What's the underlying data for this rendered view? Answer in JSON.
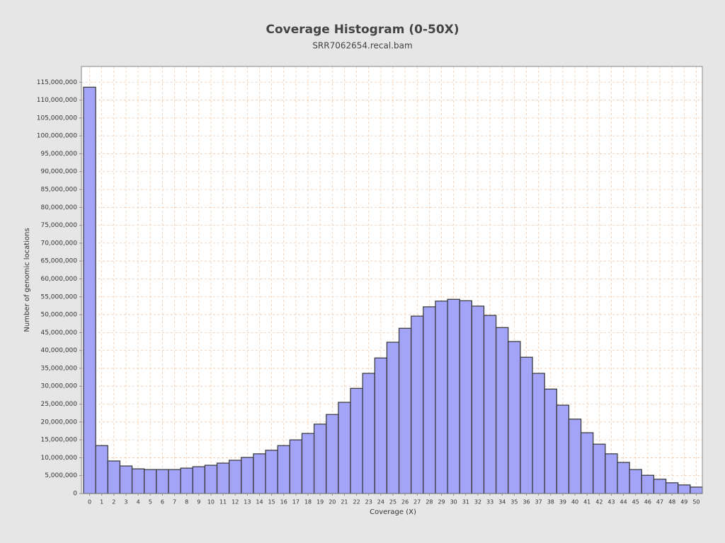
{
  "chart_data": {
    "type": "bar",
    "title": "Coverage Histogram (0-50X)",
    "subtitle": "SRR7062654.recal.bam",
    "x_label": "Coverage (X)",
    "y_label": "Number of genomic locations",
    "categories": [
      0,
      1,
      2,
      3,
      4,
      5,
      6,
      7,
      8,
      9,
      10,
      11,
      12,
      13,
      14,
      15,
      16,
      17,
      18,
      19,
      20,
      21,
      22,
      23,
      24,
      25,
      26,
      27,
      28,
      29,
      30,
      31,
      32,
      33,
      34,
      35,
      36,
      37,
      38,
      39,
      40,
      41,
      42,
      43,
      44,
      45,
      46,
      47,
      48,
      49,
      50
    ],
    "values": [
      113600000,
      13400000,
      9100000,
      7700000,
      6900000,
      6700000,
      6700000,
      6700000,
      7100000,
      7500000,
      7900000,
      8500000,
      9300000,
      10100000,
      11100000,
      12100000,
      13400000,
      15000000,
      16800000,
      19400000,
      22100000,
      25500000,
      29400000,
      33600000,
      37900000,
      42300000,
      46200000,
      49600000,
      52200000,
      53800000,
      54300000,
      53900000,
      52400000,
      49800000,
      46400000,
      42500000,
      38100000,
      33600000,
      29200000,
      24700000,
      20800000,
      17000000,
      13800000,
      11100000,
      8700000,
      6700000,
      5100000,
      4000000,
      3000000,
      2400000,
      1800000
    ],
    "color": "#a3a3f8",
    "ylim": [
      0,
      119400000
    ],
    "yticks": [
      0,
      {
        "value": 5000000,
        "label": "5,000,000"
      },
      {
        "value": 10000000,
        "label": "10,000,000"
      },
      {
        "value": 15000000,
        "label": "15,000,000"
      },
      {
        "value": 20000000,
        "label": "20,000,000"
      },
      {
        "value": 25000000,
        "label": "25,000,000"
      },
      {
        "value": 30000000,
        "label": "30,000,000"
      },
      {
        "value": 35000000,
        "label": "35,000,000"
      },
      {
        "value": 40000000,
        "label": "40,000,000"
      },
      {
        "value": 45000000,
        "label": "45,000,000"
      },
      {
        "value": 50000000,
        "label": "50,000,000"
      },
      {
        "value": 55000000,
        "label": "55,000,000"
      },
      {
        "value": 60000000,
        "label": "60,000,000"
      },
      {
        "value": 65000000,
        "label": "65,000,000"
      },
      {
        "value": 70000000,
        "label": "70,000,000"
      },
      {
        "value": 75000000,
        "label": "75,000,000"
      },
      {
        "value": 80000000,
        "label": "80,000,000"
      },
      {
        "value": 85000000,
        "label": "85,000,000"
      },
      {
        "value": 90000000,
        "label": "90,000,000"
      },
      {
        "value": 95000000,
        "label": "95,000,000"
      },
      {
        "value": 100000000,
        "label": "100,000,000"
      },
      {
        "value": 105000000,
        "label": "105,000,000"
      },
      {
        "value": 110000000,
        "label": "110,000,000"
      },
      {
        "value": 115000000,
        "label": "115,000,000"
      }
    ],
    "grid": true
  }
}
